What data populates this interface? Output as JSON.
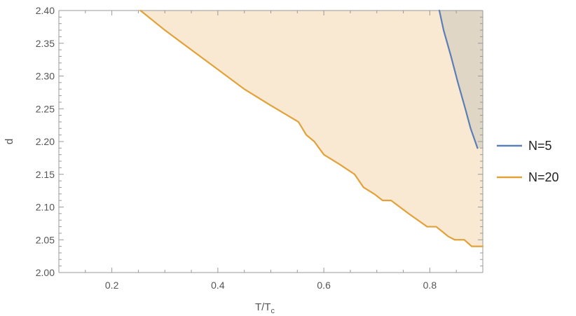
{
  "chart_data": {
    "type": "line",
    "xlabel": "T/T",
    "xlabel_sub": "c",
    "ylabel": "d",
    "xlim": [
      0.1,
      0.9
    ],
    "ylim": [
      2.0,
      2.4
    ],
    "x_ticks": [
      0.2,
      0.4,
      0.6,
      0.8
    ],
    "x_tick_labels": [
      "0.2",
      "0.4",
      "0.6",
      "0.8"
    ],
    "y_ticks": [
      2.0,
      2.05,
      2.1,
      2.15,
      2.2,
      2.25,
      2.3,
      2.35,
      2.4
    ],
    "y_tick_labels": [
      "2.00",
      "2.05",
      "2.10",
      "2.15",
      "2.20",
      "2.25",
      "2.30",
      "2.35",
      "2.40"
    ],
    "grid": false,
    "legend_position": "right",
    "series": [
      {
        "name": "N=5",
        "color": "#5B7FB5",
        "fill_color": "#DFD6C6",
        "fill": "above",
        "points": [
          [
            0.818,
            2.4
          ],
          [
            0.826,
            2.37
          ],
          [
            0.84,
            2.33
          ],
          [
            0.853,
            2.29
          ],
          [
            0.867,
            2.25
          ],
          [
            0.877,
            2.22
          ],
          [
            0.89,
            2.19
          ]
        ]
      },
      {
        "name": "N=20",
        "color": "#E1A23A",
        "fill_color": "#F9E8D2",
        "fill": "above",
        "points": [
          [
            0.254,
            2.4
          ],
          [
            0.3,
            2.37
          ],
          [
            0.35,
            2.34
          ],
          [
            0.4,
            2.31
          ],
          [
            0.45,
            2.28
          ],
          [
            0.5,
            2.255
          ],
          [
            0.552,
            2.23
          ],
          [
            0.567,
            2.21
          ],
          [
            0.582,
            2.2
          ],
          [
            0.6,
            2.18
          ],
          [
            0.63,
            2.165
          ],
          [
            0.658,
            2.15
          ],
          [
            0.675,
            2.13
          ],
          [
            0.695,
            2.12
          ],
          [
            0.711,
            2.11
          ],
          [
            0.727,
            2.11
          ],
          [
            0.76,
            2.09
          ],
          [
            0.795,
            2.07
          ],
          [
            0.812,
            2.07
          ],
          [
            0.835,
            2.055
          ],
          [
            0.847,
            2.05
          ],
          [
            0.865,
            2.05
          ],
          [
            0.879,
            2.04
          ],
          [
            0.9,
            2.04
          ]
        ]
      }
    ]
  }
}
